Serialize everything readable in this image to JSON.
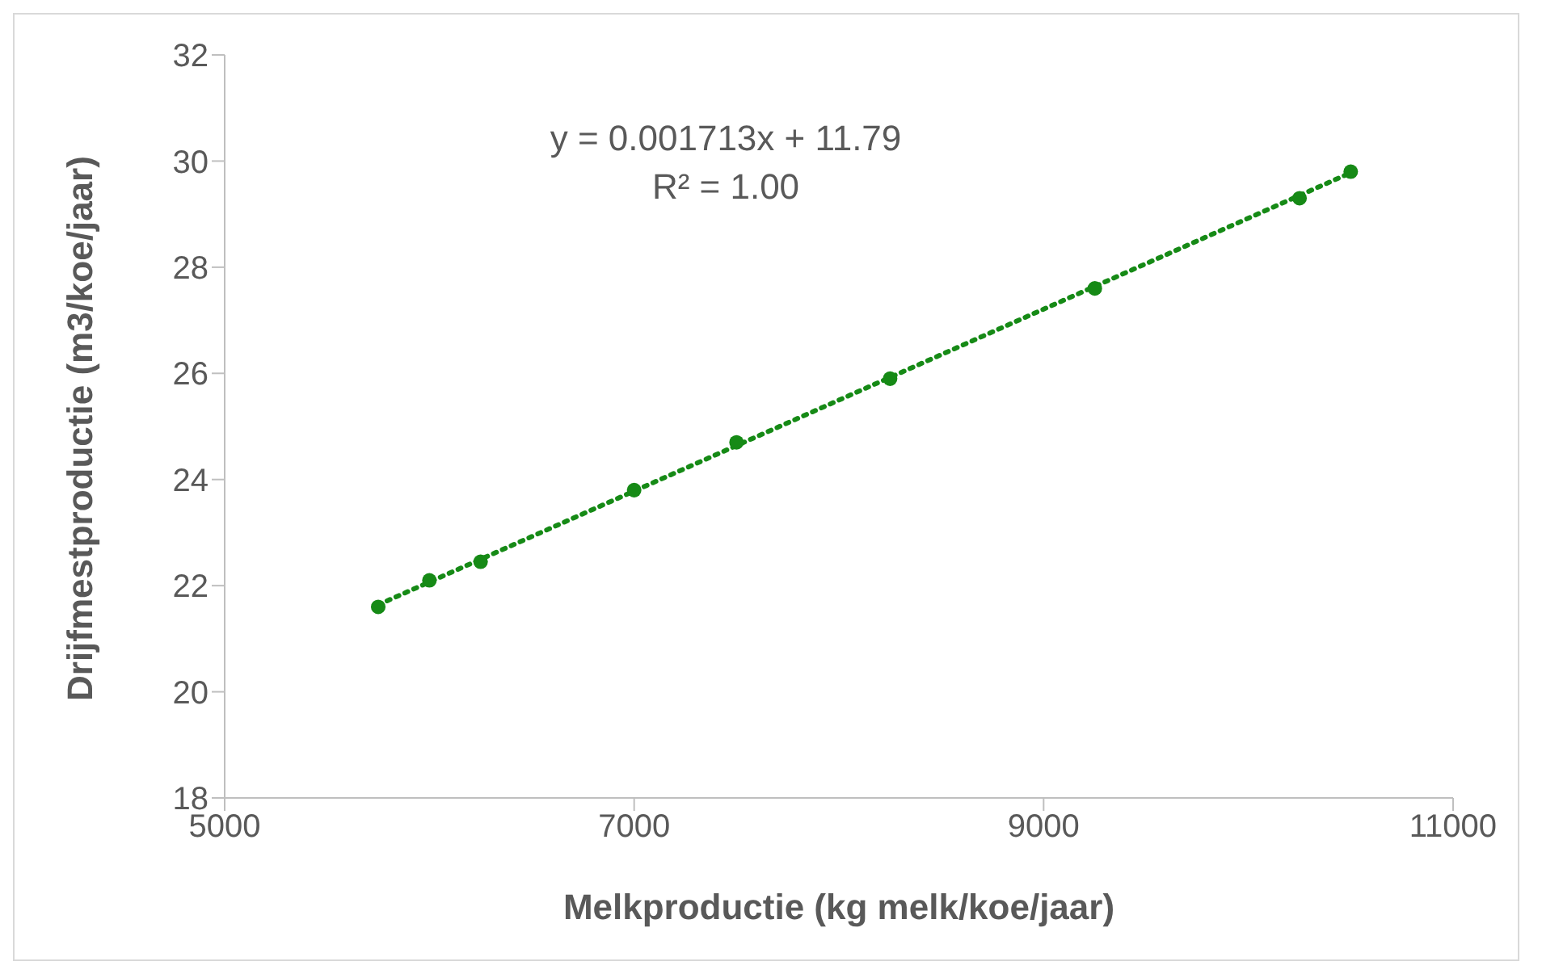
{
  "chart_data": {
    "type": "scatter",
    "xlabel": "Melkproductie (kg melk/koe/jaar)",
    "ylabel": "Drijfmestproductie (m3/koe/jaar)",
    "annotations": [
      "y = 0.001713x + 11.79",
      "R² = 1.00"
    ],
    "x": [
      5750,
      6000,
      6250,
      7000,
      7500,
      8250,
      9250,
      10250,
      10500
    ],
    "series": [
      {
        "color": "#168a16",
        "values": [
          21.6,
          22.1,
          22.45,
          23.8,
          24.7,
          25.9,
          27.6,
          29.3,
          29.8
        ],
        "marker": "circle"
      },
      {
        "type": "line",
        "color": "#168a16",
        "x": [
          5750,
          10500
        ],
        "values": [
          21.64,
          29.78
        ],
        "line_style": "dotted",
        "marker": "none"
      }
    ],
    "xlim": [
      5000,
      11000
    ],
    "xticks": [
      5000,
      7000,
      9000,
      11000
    ],
    "ylim": [
      18,
      32
    ],
    "yticks": [
      18,
      20,
      22,
      24,
      26,
      28,
      30,
      32
    ],
    "grid": false,
    "legend": false
  }
}
